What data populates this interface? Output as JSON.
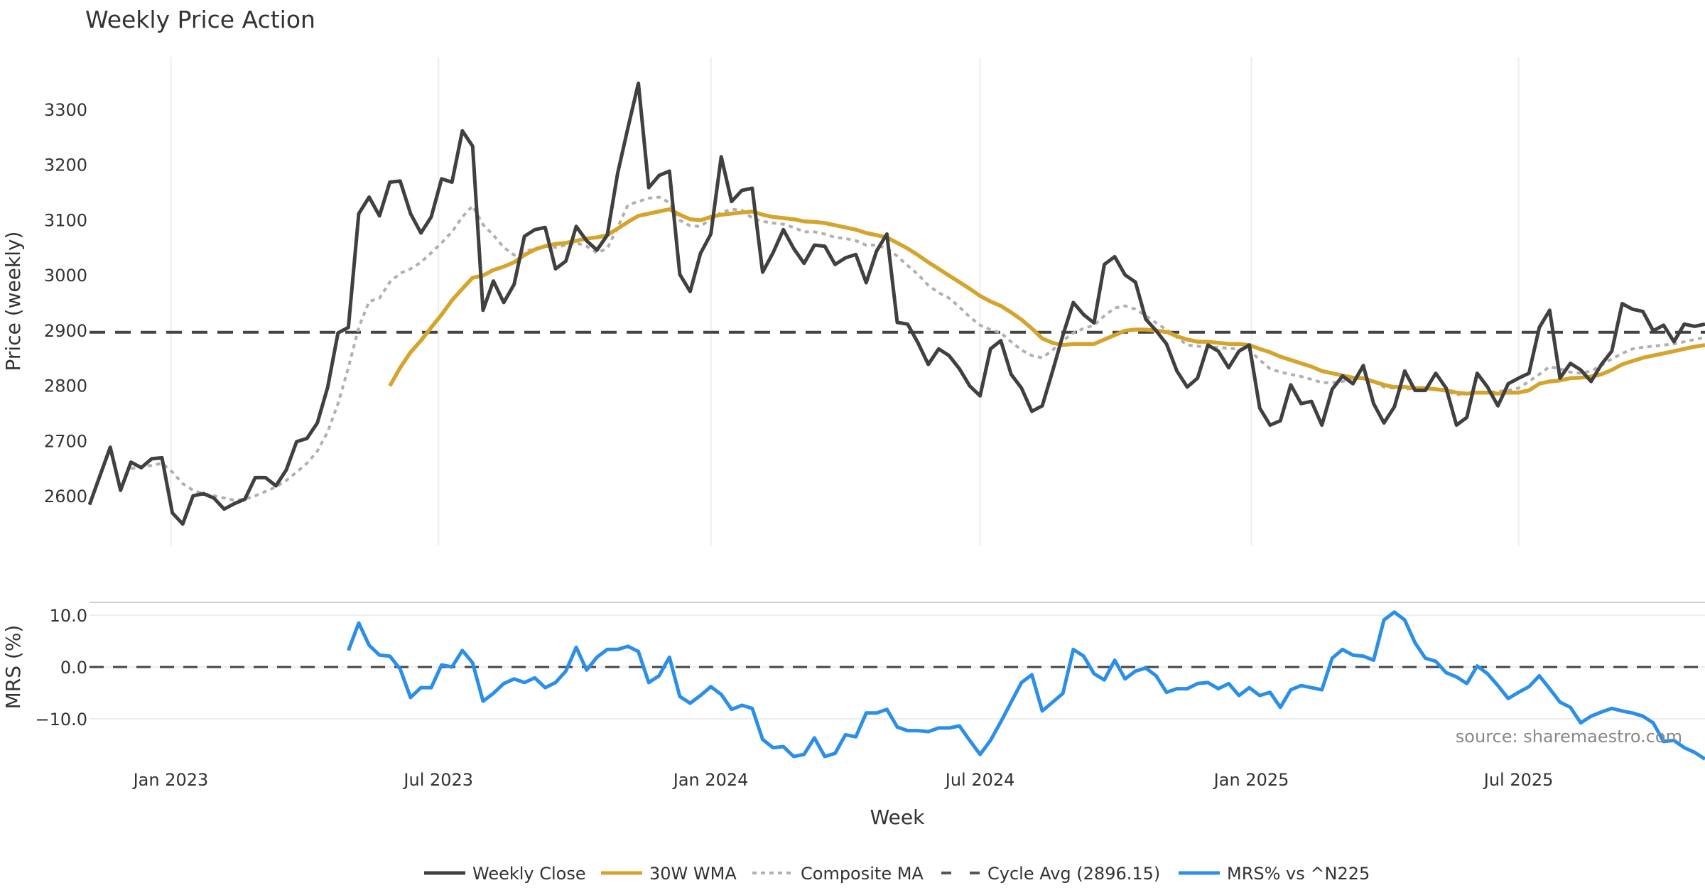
{
  "chart_data": {
    "type": "line",
    "title": "Weekly Price Action",
    "xlabel": "Week",
    "source": "source: sharemaestro.com",
    "x_ticks": [
      {
        "label": "Jan 2023",
        "week_index": 7.85
      },
      {
        "label": "Jul 2023",
        "week_index": 33.7
      },
      {
        "label": "Jan 2024",
        "week_index": 60.0
      },
      {
        "label": "Jul 2024",
        "week_index": 86.0
      },
      {
        "label": "Jan 2025",
        "week_index": 112.2
      },
      {
        "label": "Jul 2025",
        "week_index": 138.0
      }
    ],
    "week_count": 157,
    "panels": [
      {
        "name": "price",
        "ylabel": "Price (weekly)",
        "ylim": [
          2510,
          3395
        ],
        "y_ticks": [
          "2600",
          "2700",
          "2800",
          "2900",
          "3000",
          "3100",
          "3200",
          "3300"
        ],
        "grid": true
      },
      {
        "name": "mrs",
        "ylabel": "MRS (%)",
        "ylim": [
          -19.5,
          12.5
        ],
        "y_ticks": [
          "−10.0",
          "0.0",
          "10.0"
        ],
        "grid": true
      }
    ],
    "reference_line": {
      "name": "Cycle Avg (2896.15)",
      "value": 2896.15,
      "panel": "price"
    },
    "zero_line": {
      "value": 0,
      "panel": "mrs"
    },
    "series": [
      {
        "name": "Weekly Close",
        "panel": "price",
        "color": "#404040",
        "style": "solid",
        "start_index": 0,
        "values": [
          2584,
          2636,
          2688,
          2610,
          2661,
          2651,
          2667,
          2669,
          2569,
          2549,
          2600,
          2604,
          2596,
          2576,
          2586,
          2594,
          2633,
          2633,
          2618,
          2647,
          2698,
          2704,
          2732,
          2797,
          2895,
          2905,
          3111,
          3141,
          3107,
          3168,
          3170,
          3111,
          3076,
          3105,
          3174,
          3168,
          3261,
          3233,
          2936,
          2989,
          2950,
          2983,
          3070,
          3082,
          3086,
          3011,
          3025,
          3088,
          3062,
          3045,
          3072,
          3184,
          3267,
          3347,
          3158,
          3180,
          3188,
          3001,
          2970,
          3039,
          3074,
          3214,
          3133,
          3153,
          3157,
          3005,
          3040,
          3082,
          3048,
          3021,
          3054,
          3052,
          3019,
          3031,
          3037,
          2986,
          3043,
          3074,
          2914,
          2911,
          2877,
          2838,
          2866,
          2854,
          2830,
          2799,
          2781,
          2866,
          2881,
          2820,
          2795,
          2753,
          2763,
          2826,
          2891,
          2950,
          2928,
          2913,
          3019,
          3033,
          3000,
          2987,
          2920,
          2899,
          2875,
          2826,
          2797,
          2813,
          2873,
          2862,
          2832,
          2862,
          2873,
          2759,
          2728,
          2736,
          2801,
          2767,
          2771,
          2728,
          2793,
          2817,
          2803,
          2836,
          2767,
          2732,
          2761,
          2826,
          2791,
          2791,
          2822,
          2795,
          2728,
          2742,
          2822,
          2797,
          2763,
          2803,
          2813,
          2822,
          2905,
          2936,
          2813,
          2840,
          2828,
          2807,
          2838,
          2862,
          2948,
          2938,
          2934,
          2899,
          2909,
          2879,
          2911,
          2907,
          2911
        ]
      },
      {
        "name": "30W WMA",
        "panel": "price",
        "color": "#D4A42C",
        "style": "solid",
        "start_index": 29,
        "values": [
          2799,
          2832,
          2860,
          2881,
          2905,
          2928,
          2954,
          2975,
          2995,
          2999,
          3009,
          3015,
          3023,
          3036,
          3046,
          3052,
          3056,
          3058,
          3062,
          3066,
          3068,
          3072,
          3084,
          3096,
          3107,
          3111,
          3115,
          3119,
          3109,
          3101,
          3099,
          3105,
          3109,
          3111,
          3113,
          3115,
          3109,
          3105,
          3103,
          3101,
          3097,
          3096,
          3094,
          3090,
          3086,
          3082,
          3076,
          3072,
          3068,
          3058,
          3048,
          3036,
          3023,
          3011,
          2999,
          2987,
          2975,
          2962,
          2952,
          2944,
          2932,
          2919,
          2903,
          2885,
          2877,
          2873,
          2875,
          2875,
          2875,
          2883,
          2891,
          2899,
          2901,
          2901,
          2899,
          2897,
          2889,
          2883,
          2879,
          2879,
          2877,
          2875,
          2875,
          2873,
          2866,
          2860,
          2852,
          2846,
          2840,
          2834,
          2826,
          2822,
          2818,
          2814,
          2813,
          2807,
          2801,
          2797,
          2797,
          2795,
          2795,
          2793,
          2791,
          2787,
          2785,
          2787,
          2787,
          2785,
          2787,
          2787,
          2791,
          2803,
          2807,
          2809,
          2813,
          2814,
          2816,
          2820,
          2828,
          2838,
          2844,
          2850,
          2854,
          2858,
          2862,
          2866,
          2870,
          2873
        ]
      },
      {
        "name": "Composite MA",
        "panel": "price",
        "color": "#B0B0B0",
        "style": "dotted",
        "start_index": 4,
        "values": [
          2649,
          2653,
          2655,
          2659,
          2643,
          2622,
          2610,
          2604,
          2600,
          2596,
          2592,
          2594,
          2600,
          2608,
          2616,
          2628,
          2643,
          2659,
          2681,
          2716,
          2767,
          2832,
          2905,
          2952,
          2958,
          2987,
          3003,
          3011,
          3023,
          3040,
          3058,
          3078,
          3105,
          3125,
          3091,
          3072,
          3050,
          3036,
          3042,
          3048,
          3052,
          3050,
          3054,
          3058,
          3052,
          3040,
          3048,
          3086,
          3127,
          3133,
          3139,
          3141,
          3131,
          3099,
          3089,
          3088,
          3101,
          3113,
          3119,
          3117,
          3103,
          3097,
          3094,
          3092,
          3086,
          3078,
          3078,
          3074,
          3068,
          3066,
          3062,
          3054,
          3054,
          3048,
          3034,
          3017,
          3001,
          2981,
          2968,
          2958,
          2942,
          2924,
          2909,
          2901,
          2895,
          2879,
          2864,
          2854,
          2850,
          2864,
          2881,
          2895,
          2903,
          2909,
          2926,
          2940,
          2944,
          2938,
          2926,
          2913,
          2901,
          2887,
          2873,
          2871,
          2869,
          2869,
          2867,
          2866,
          2864,
          2846,
          2830,
          2824,
          2820,
          2816,
          2811,
          2805,
          2805,
          2807,
          2813,
          2813,
          2807,
          2797,
          2795,
          2793,
          2795,
          2793,
          2793,
          2789,
          2783,
          2785,
          2787,
          2787,
          2789,
          2791,
          2795,
          2807,
          2820,
          2834,
          2830,
          2824,
          2822,
          2826,
          2836,
          2848,
          2858,
          2866,
          2869,
          2871,
          2873,
          2875,
          2879,
          2883,
          2887
        ]
      },
      {
        "name": "MRS% vs ^N225",
        "panel": "mrs",
        "color": "#2B8FE8",
        "style": "solid",
        "start_index": 25,
        "values": [
          3.2,
          8.5,
          4.2,
          2.3,
          2.1,
          -0.4,
          -5.9,
          -4.0,
          -4.0,
          0.4,
          0.0,
          3.2,
          0.8,
          -6.6,
          -5.1,
          -3.2,
          -2.3,
          -3.0,
          -2.1,
          -4.0,
          -3.0,
          -0.8,
          3.8,
          -0.6,
          1.9,
          3.4,
          3.4,
          4.0,
          3.0,
          -3.0,
          -1.7,
          1.9,
          -5.7,
          -7.0,
          -5.5,
          -3.8,
          -5.3,
          -8.2,
          -7.4,
          -8.0,
          -14.0,
          -15.6,
          -15.4,
          -17.3,
          -16.9,
          -13.7,
          -17.3,
          -16.7,
          -13.1,
          -13.5,
          -8.9,
          -8.9,
          -8.2,
          -11.6,
          -12.3,
          -12.3,
          -12.5,
          -11.8,
          -11.8,
          -11.4,
          -14.2,
          -16.9,
          -14.2,
          -10.6,
          -6.8,
          -3.0,
          -1.5,
          -8.5,
          -6.8,
          -5.1,
          3.4,
          2.1,
          -1.3,
          -2.5,
          1.3,
          -2.3,
          -0.8,
          -0.2,
          -1.7,
          -4.9,
          -4.2,
          -4.2,
          -3.2,
          -3.0,
          -4.2,
          -3.2,
          -5.5,
          -4.0,
          -5.5,
          -4.9,
          -7.8,
          -4.4,
          -3.6,
          -4.0,
          -4.4,
          1.7,
          3.4,
          2.3,
          2.1,
          1.3,
          9.1,
          10.6,
          9.1,
          4.7,
          1.7,
          1.1,
          -1.1,
          -1.9,
          -3.2,
          0.2,
          -1.3,
          -3.6,
          -6.1,
          -4.9,
          -3.8,
          -1.7,
          -4.2,
          -6.8,
          -7.8,
          -10.8,
          -9.5,
          -8.7,
          -8.0,
          -8.5,
          -8.9,
          -9.5,
          -10.8,
          -14.4,
          -14.2,
          -15.6,
          -16.5,
          -17.8
        ]
      }
    ],
    "legend": {
      "position": "bottom-center",
      "entries": [
        {
          "label": "Weekly Close",
          "color": "#404040",
          "style": "solid"
        },
        {
          "label": "30W WMA",
          "color": "#D4A42C",
          "style": "solid"
        },
        {
          "label": "Composite MA",
          "color": "#B0B0B0",
          "style": "dotted"
        },
        {
          "label": "Cycle Avg (2896.15)",
          "color": "#555555",
          "style": "dashed"
        },
        {
          "label": "MRS% vs ^N225",
          "color": "#2B8FE8",
          "style": "solid"
        }
      ]
    }
  }
}
